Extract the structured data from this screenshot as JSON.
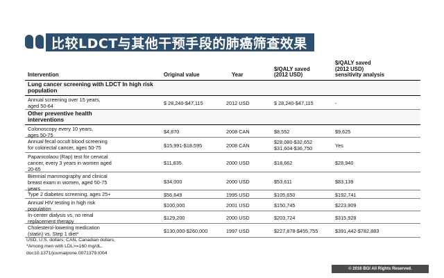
{
  "title": "比较LDCT与其他干预手段的肺癌筛查效果",
  "headers": {
    "intervention": "Intervention",
    "original_value": "Original value",
    "year": "Year",
    "qaly_saved": "$/QALY saved\n(2012 USD)",
    "sensitivity": "$/QALY saved\n(2012 USD)\nsensitivity analysis"
  },
  "rows": [
    {
      "type": "section",
      "intervention": "Lung cancer screening with LDCT In high risk\npopulation"
    },
    {
      "type": "data",
      "intervention": "Annual screening over 15 years,\naged 50-64",
      "original": "$ 28,240-$47,115",
      "year": "2012 USD",
      "qaly": "$ 28,240-$47,115",
      "sens": "-"
    },
    {
      "type": "section",
      "intervention": "Other preventive health\ninterventions"
    },
    {
      "type": "data",
      "intervention": "Colonoscopy every 10 years,\nages 50-75",
      "original": "$4,870",
      "year": "2008 CAN",
      "qaly": "$8,552",
      "sens": "$9,625"
    },
    {
      "type": "data",
      "intervention": "Annual fecal occult blood screening\nfor colorectal cancer, ages 50-75",
      "original": "$15,991-$18,595",
      "year": "2008 CAN",
      "qaly": "$28,080-$32,652\n$31,604-$36,750",
      "sens": "Yes"
    },
    {
      "type": "data",
      "intervention": "Papanicolaou (Rap) test for cervical\ncancer, every 3 years in women aged\n20-65",
      "original": "$11,835",
      "year": "2000 USD",
      "qaly": "$18,662",
      "sens": "$28,940"
    },
    {
      "type": "data",
      "intervention": "Biennial mammography and clinical\nbreast exam in women, aged 50-75\nyears",
      "original": "$34,000",
      "year": "2000 USD",
      "qaly": "$53,611",
      "sens": "$83,139"
    },
    {
      "type": "data",
      "intervention": "Type 2 diabetes screening, ages 25+",
      "original": "$56,649",
      "year": "1995 USD",
      "qaly": "$105,650",
      "sens": "$192,741"
    },
    {
      "type": "data",
      "intervention": "Annual HIV testing in high risk\npopulation",
      "original": "$100,000",
      "year": "2001 USD",
      "qaly": "$150,745",
      "sens": "$223,909"
    },
    {
      "type": "data",
      "intervention": "In-center dialysis vs, no renal\nreplacement therapy",
      "original": "$129,200",
      "year": "2000 USD",
      "qaly": "$203,724",
      "sens": "$315,928"
    },
    {
      "type": "data",
      "intervention": "Cholesterol-lowering medication\n(statin) vs. Step 1 diet*",
      "original": "$130,000-$260,000",
      "year": "1997 USD",
      "qaly": "$227,878-$455,755",
      "sens": "$391,442-$782,883"
    }
  ],
  "footnote": "USD, U.S. dollars; CAN, Canadian dollars,\n*Among men with LDL>=160 mg/dL.\ndoc10.1371/journalpone.0071379.t004",
  "copyright": "© 2016 BGI All Rights Reserved.",
  "colors": {
    "accent": "#2d4e6c"
  }
}
